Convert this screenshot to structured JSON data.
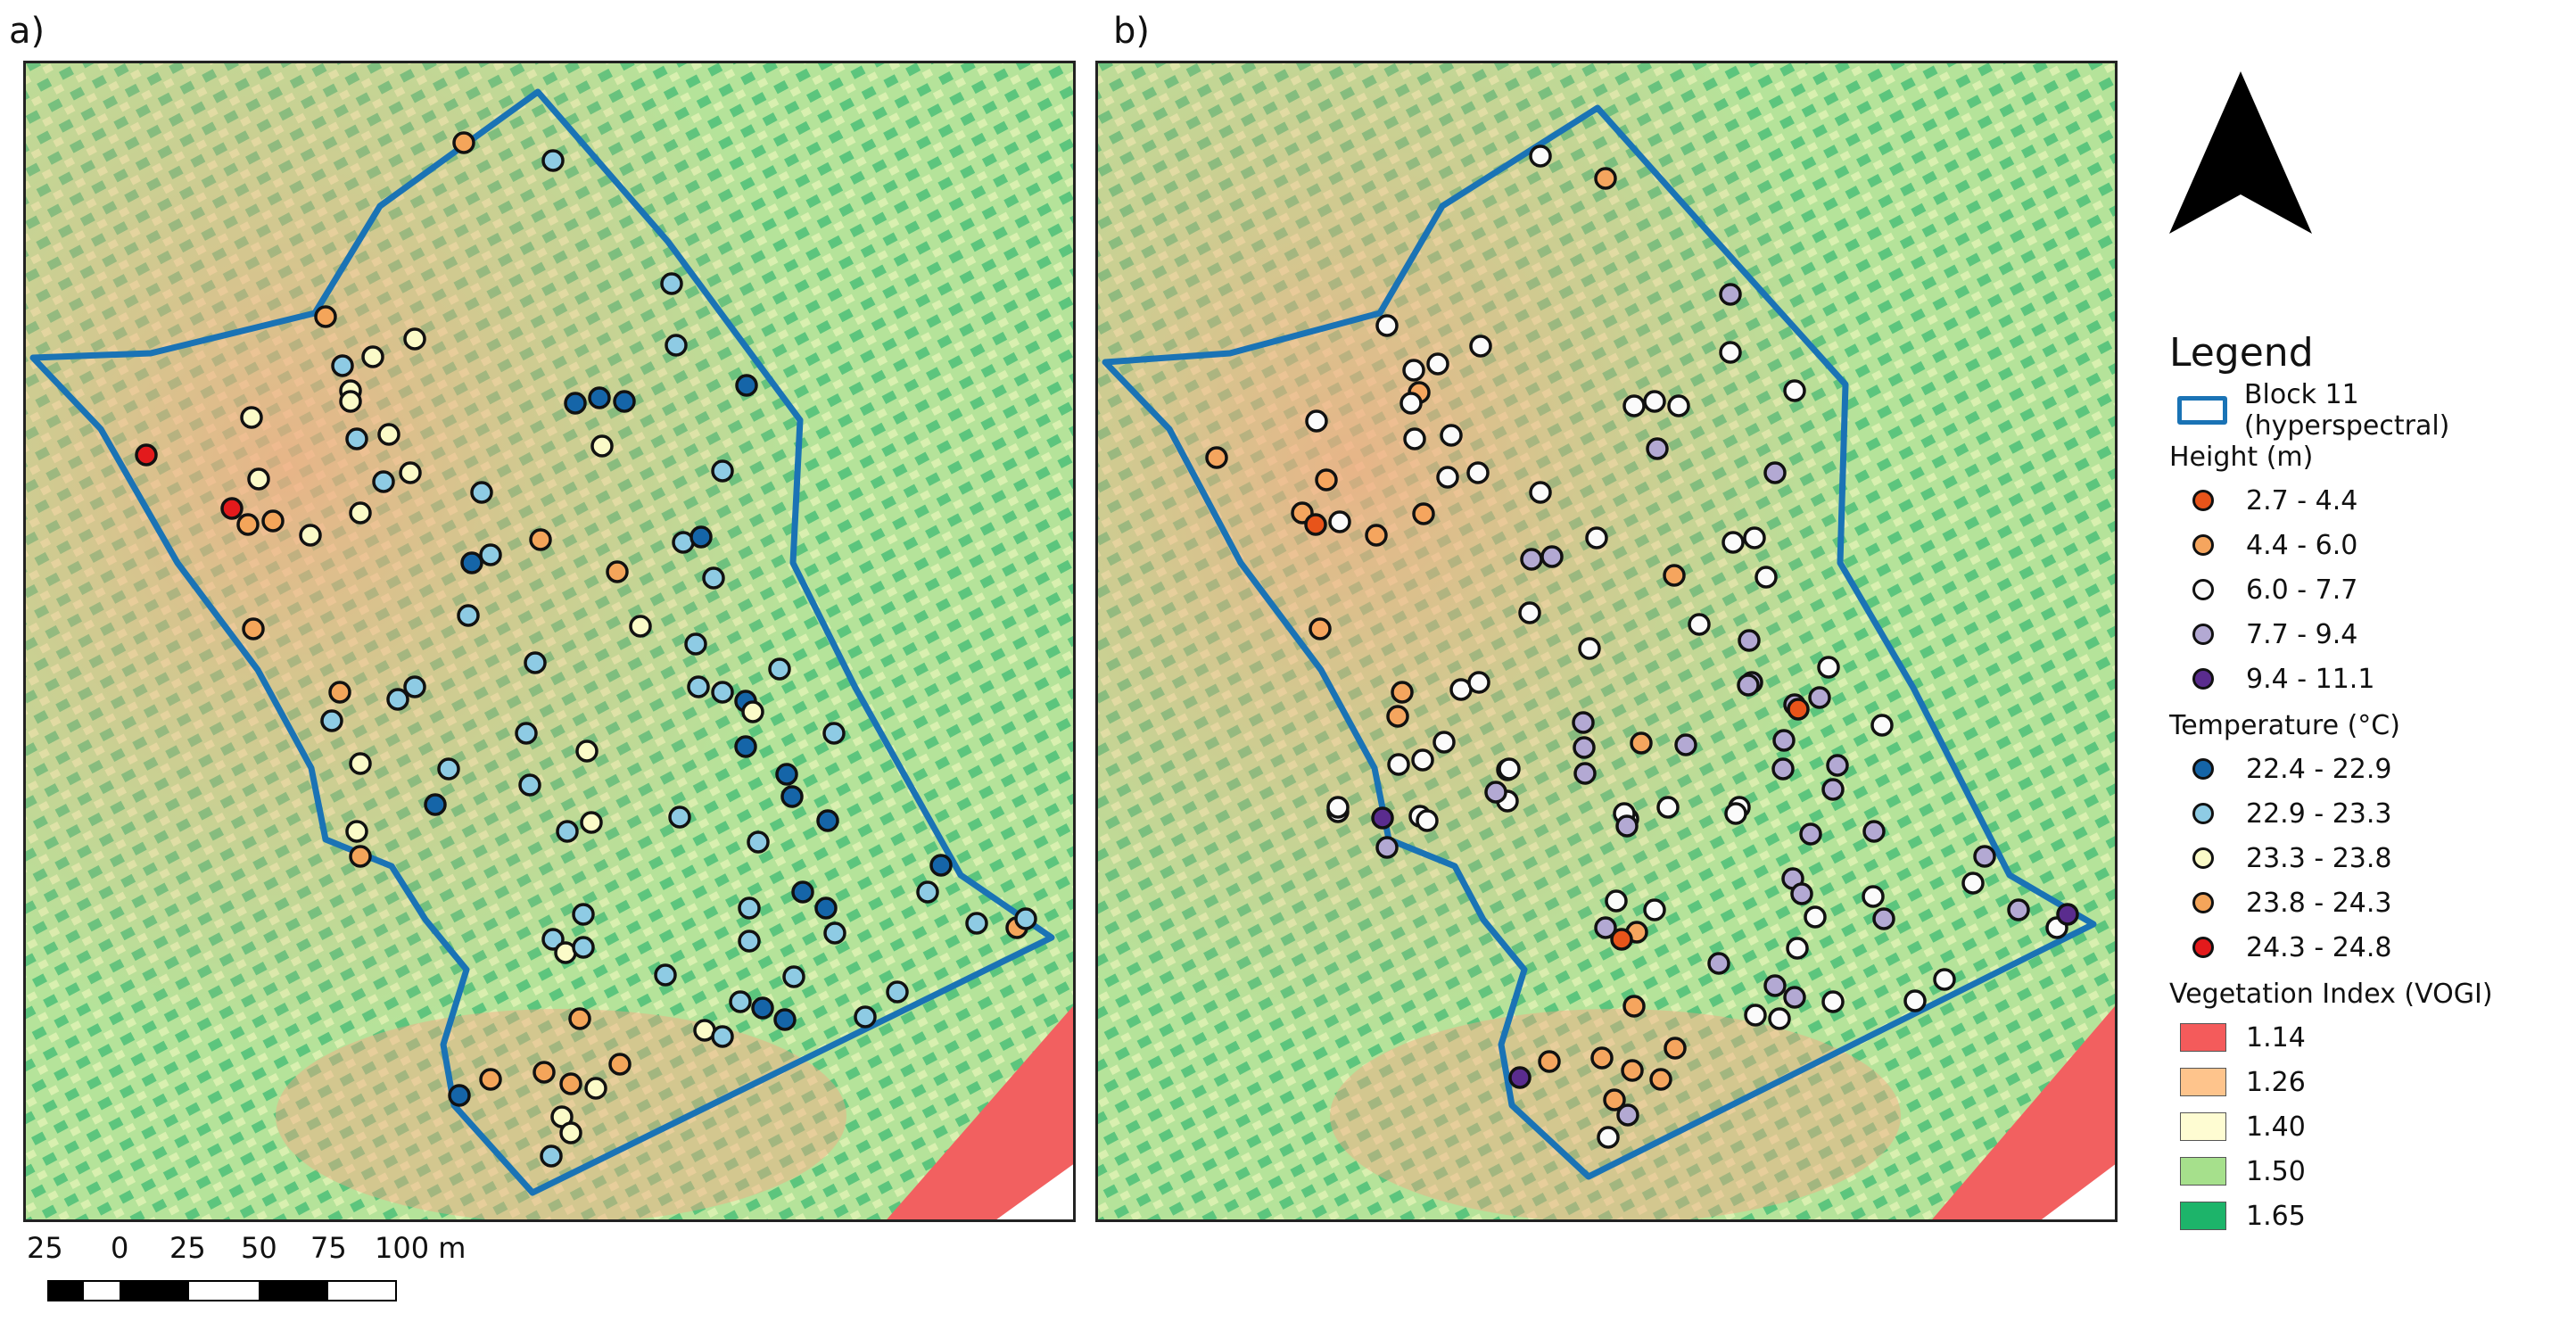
{
  "panels": [
    {
      "id": "a",
      "label": "a)",
      "points": [
        [
          520,
          160,
          "t4"
        ],
        [
          620,
          180,
          "t2"
        ],
        [
          365,
          355,
          "t4"
        ],
        [
          384,
          410,
          "t2"
        ],
        [
          418,
          400,
          "t3"
        ],
        [
          465,
          380,
          "t3"
        ],
        [
          393,
          438,
          "t3"
        ],
        [
          393,
          450,
          "t3"
        ],
        [
          282,
          468,
          "t3"
        ],
        [
          400,
          492,
          "t2"
        ],
        [
          436,
          487,
          "t3"
        ],
        [
          164,
          510,
          "t5"
        ],
        [
          290,
          537,
          "t3"
        ],
        [
          430,
          540,
          "t2"
        ],
        [
          460,
          530,
          "t3"
        ],
        [
          260,
          570,
          "t5"
        ],
        [
          278,
          588,
          "t4"
        ],
        [
          306,
          584,
          "t4"
        ],
        [
          348,
          600,
          "t3"
        ],
        [
          404,
          575,
          "t3"
        ],
        [
          540,
          552,
          "t2"
        ],
        [
          284,
          705,
          "t4"
        ],
        [
          753,
          318,
          "t2"
        ],
        [
          758,
          387,
          "t2"
        ],
        [
          645,
          452,
          "t1"
        ],
        [
          672,
          446,
          "t1"
        ],
        [
          700,
          450,
          "t1"
        ],
        [
          837,
          432,
          "t1"
        ],
        [
          675,
          500,
          "t3"
        ],
        [
          810,
          528,
          "t2"
        ],
        [
          766,
          608,
          "t2"
        ],
        [
          786,
          602,
          "t1"
        ],
        [
          800,
          648,
          "t2"
        ],
        [
          529,
          631,
          "t1"
        ],
        [
          550,
          622,
          "t2"
        ],
        [
          525,
          690,
          "t2"
        ],
        [
          606,
          605,
          "t4"
        ],
        [
          692,
          641,
          "t4"
        ],
        [
          718,
          702,
          "t3"
        ],
        [
          780,
          722,
          "t2"
        ],
        [
          381,
          776,
          "t4"
        ],
        [
          372,
          808,
          "t2"
        ],
        [
          446,
          784,
          "t2"
        ],
        [
          465,
          770,
          "t2"
        ],
        [
          600,
          743,
          "t2"
        ],
        [
          783,
          770,
          "t2"
        ],
        [
          810,
          776,
          "t2"
        ],
        [
          836,
          786,
          "t1"
        ],
        [
          874,
          750,
          "t2"
        ],
        [
          404,
          856,
          "t3"
        ],
        [
          590,
          822,
          "t2"
        ],
        [
          658,
          842,
          "t3"
        ],
        [
          836,
          837,
          "t1"
        ],
        [
          844,
          798,
          "t3"
        ],
        [
          935,
          822,
          "t2"
        ],
        [
          503,
          862,
          "t2"
        ],
        [
          488,
          902,
          "t1"
        ],
        [
          594,
          880,
          "t2"
        ],
        [
          882,
          868,
          "t1"
        ],
        [
          888,
          893,
          "t1"
        ],
        [
          400,
          932,
          "t3"
        ],
        [
          404,
          960,
          "t4"
        ],
        [
          636,
          932,
          "t2"
        ],
        [
          663,
          922,
          "t3"
        ],
        [
          762,
          916,
          "t2"
        ],
        [
          850,
          944,
          "t2"
        ],
        [
          928,
          920,
          "t1"
        ],
        [
          900,
          1000,
          "t1"
        ],
        [
          926,
          1018,
          "t1"
        ],
        [
          936,
          1046,
          "t2"
        ],
        [
          840,
          1018,
          "t2"
        ],
        [
          1055,
          970,
          "t1"
        ],
        [
          1040,
          1000,
          "t2"
        ],
        [
          1095,
          1035,
          "t2"
        ],
        [
          1140,
          1040,
          "t4"
        ],
        [
          1150,
          1030,
          "t2"
        ],
        [
          654,
          1025,
          "t2"
        ],
        [
          840,
          1055,
          "t2"
        ],
        [
          620,
          1053,
          "t2"
        ],
        [
          634,
          1068,
          "t3"
        ],
        [
          654,
          1062,
          "t2"
        ],
        [
          746,
          1093,
          "t2"
        ],
        [
          890,
          1095,
          "t2"
        ],
        [
          830,
          1123,
          "t2"
        ],
        [
          855,
          1130,
          "t1"
        ],
        [
          880,
          1143,
          "t1"
        ],
        [
          970,
          1140,
          "t2"
        ],
        [
          1006,
          1112,
          "t2"
        ],
        [
          790,
          1155,
          "t3"
        ],
        [
          810,
          1162,
          "t2"
        ],
        [
          650,
          1142,
          "t4"
        ],
        [
          610,
          1202,
          "t4"
        ],
        [
          640,
          1215,
          "t4"
        ],
        [
          668,
          1220,
          "t3"
        ],
        [
          695,
          1193,
          "t4"
        ],
        [
          550,
          1210,
          "t4"
        ],
        [
          515,
          1228,
          "t1"
        ],
        [
          630,
          1252,
          "t3"
        ],
        [
          640,
          1270,
          "t3"
        ],
        [
          618,
          1296,
          "t2"
        ]
      ]
    },
    {
      "id": "b",
      "label": "b)",
      "points": [
        [
          1727,
          175,
          "h3"
        ],
        [
          1800,
          200,
          "h2"
        ],
        [
          1940,
          330,
          "h4"
        ],
        [
          1555,
          365,
          "h3"
        ],
        [
          1612,
          408,
          "h3"
        ],
        [
          1660,
          388,
          "h3"
        ],
        [
          1585,
          415,
          "h3"
        ],
        [
          1591,
          440,
          "h2"
        ],
        [
          1582,
          452,
          "h3"
        ],
        [
          1940,
          395,
          "h3"
        ],
        [
          2012,
          438,
          "h3"
        ],
        [
          1832,
          455,
          "h3"
        ],
        [
          1855,
          450,
          "h3"
        ],
        [
          1882,
          455,
          "h3"
        ],
        [
          1476,
          472,
          "h3"
        ],
        [
          1586,
          492,
          "h3"
        ],
        [
          1627,
          488,
          "h3"
        ],
        [
          1858,
          503,
          "h4"
        ],
        [
          1364,
          513,
          "h2"
        ],
        [
          1487,
          538,
          "h2"
        ],
        [
          1990,
          530,
          "h4"
        ],
        [
          1623,
          535,
          "h3"
        ],
        [
          1657,
          530,
          "h3"
        ],
        [
          1727,
          552,
          "h3"
        ],
        [
          1460,
          575,
          "h2"
        ],
        [
          1475,
          588,
          "h1"
        ],
        [
          1502,
          585,
          "h3"
        ],
        [
          1543,
          600,
          "h2"
        ],
        [
          1596,
          576,
          "h2"
        ],
        [
          1790,
          603,
          "h3"
        ],
        [
          1943,
          608,
          "h3"
        ],
        [
          1967,
          603,
          "h3"
        ],
        [
          1717,
          627,
          "h4"
        ],
        [
          1740,
          624,
          "h4"
        ],
        [
          1980,
          647,
          "h3"
        ],
        [
          1877,
          645,
          "h2"
        ],
        [
          1715,
          687,
          "h3"
        ],
        [
          1905,
          700,
          "h3"
        ],
        [
          1480,
          705,
          "h2"
        ],
        [
          1961,
          718,
          "h4"
        ],
        [
          1782,
          727,
          "h3"
        ],
        [
          1964,
          765,
          "h4"
        ],
        [
          2050,
          748,
          "h3"
        ],
        [
          1960,
          768,
          "h4"
        ],
        [
          2012,
          790,
          "h4"
        ],
        [
          1572,
          776,
          "h2"
        ],
        [
          1567,
          803,
          "h2"
        ],
        [
          1638,
          773,
          "h3"
        ],
        [
          1658,
          765,
          "h3"
        ],
        [
          2040,
          782,
          "h4"
        ],
        [
          1619,
          832,
          "h3"
        ],
        [
          1775,
          810,
          "h4"
        ],
        [
          2016,
          795,
          "h1"
        ],
        [
          1568,
          857,
          "h3"
        ],
        [
          2110,
          813,
          "h3"
        ],
        [
          2000,
          830,
          "h4"
        ],
        [
          1690,
          863,
          "h3"
        ],
        [
          1595,
          852,
          "h3"
        ],
        [
          1840,
          833,
          "h2"
        ],
        [
          1999,
          862,
          "h4"
        ],
        [
          1776,
          838,
          "h4"
        ],
        [
          1890,
          835,
          "h4"
        ],
        [
          2060,
          858,
          "h4"
        ],
        [
          2055,
          885,
          "h4"
        ],
        [
          1592,
          915,
          "h3"
        ],
        [
          1777,
          867,
          "h4"
        ],
        [
          1692,
          862,
          "h3"
        ],
        [
          1950,
          905,
          "h3"
        ],
        [
          1870,
          905,
          "h3"
        ],
        [
          1825,
          918,
          "h3"
        ],
        [
          2101,
          932,
          "h4"
        ],
        [
          1690,
          898,
          "h3"
        ],
        [
          1600,
          920,
          "h3"
        ],
        [
          1500,
          910,
          "h3"
        ],
        [
          1500,
          905,
          "h3"
        ],
        [
          1550,
          917,
          "h5"
        ],
        [
          1555,
          950,
          "h4"
        ],
        [
          2030,
          935,
          "h4"
        ],
        [
          1821,
          912,
          "h3"
        ],
        [
          1824,
          926,
          "h4"
        ],
        [
          1946,
          912,
          "h3"
        ],
        [
          1677,
          888,
          "h4"
        ],
        [
          2010,
          985,
          "h4"
        ],
        [
          2020,
          1002,
          "h4"
        ],
        [
          2035,
          1028,
          "h3"
        ],
        [
          2225,
          960,
          "h4"
        ],
        [
          2212,
          990,
          "h3"
        ],
        [
          2100,
          1005,
          "h3"
        ],
        [
          2112,
          1030,
          "h4"
        ],
        [
          1812,
          1010,
          "h3"
        ],
        [
          1800,
          1040,
          "h4"
        ],
        [
          1835,
          1045,
          "h2"
        ],
        [
          1818,
          1053,
          "h1"
        ],
        [
          1855,
          1020,
          "h3"
        ],
        [
          2263,
          1020,
          "h4"
        ],
        [
          2306,
          1040,
          "h3"
        ],
        [
          2318,
          1025,
          "h5"
        ],
        [
          1927,
          1080,
          "h4"
        ],
        [
          2015,
          1063,
          "h3"
        ],
        [
          1990,
          1105,
          "h4"
        ],
        [
          2012,
          1118,
          "h4"
        ],
        [
          2055,
          1123,
          "h3"
        ],
        [
          2180,
          1098,
          "h3"
        ],
        [
          2147,
          1122,
          "h3"
        ],
        [
          1832,
          1128,
          "h2"
        ],
        [
          1995,
          1142,
          "h3"
        ],
        [
          1968,
          1138,
          "h3"
        ],
        [
          1878,
          1175,
          "h2"
        ],
        [
          1796,
          1186,
          "h2"
        ],
        [
          1737,
          1190,
          "h2"
        ],
        [
          1830,
          1200,
          "h2"
        ],
        [
          1862,
          1210,
          "h2"
        ],
        [
          1704,
          1208,
          "h5"
        ],
        [
          1810,
          1233,
          "h2"
        ],
        [
          1825,
          1250,
          "h4"
        ],
        [
          1803,
          1275,
          "h3"
        ]
      ]
    }
  ],
  "colors": {
    "outline": "#1a73b5",
    "h1": "#e8541a",
    "h2": "#f5a55e",
    "h3": "#fbfbfb",
    "h4": "#b3a9d3",
    "h5": "#5a2c8e",
    "t1": "#1565a8",
    "t2": "#8ecbe4",
    "t3": "#fbfbc8",
    "t4": "#f4a55a",
    "t5": "#e31a1c",
    "v1": "#f45b5b",
    "v2": "#fec48c",
    "v3": "#fefcd2",
    "v4": "#a6e08c",
    "v5": "#1db46a"
  },
  "legend": {
    "title": "Legend",
    "block_label": "Block 11 (hyperspectral)",
    "height_title": "Height (m)",
    "height_items": [
      {
        "label": "2.7 - 4.4",
        "color": "#e8541a"
      },
      {
        "label": "4.4 - 6.0",
        "color": "#f5a55e"
      },
      {
        "label": "6.0 - 7.7",
        "color": "#fbfbfb"
      },
      {
        "label": "7.7 - 9.4",
        "color": "#b3a9d3"
      },
      {
        "label": "9.4 - 11.1",
        "color": "#5a2c8e"
      }
    ],
    "temp_title": "Temperature (°C)",
    "temp_items": [
      {
        "label": "22.4 - 22.9",
        "color": "#1565a8"
      },
      {
        "label": "22.9 - 23.3",
        "color": "#8ecbe4"
      },
      {
        "label": "23.3 - 23.8",
        "color": "#fbfbc8"
      },
      {
        "label": "23.8 - 24.3",
        "color": "#f4a55a"
      },
      {
        "label": "24.3 - 24.8",
        "color": "#e31a1c"
      }
    ],
    "veg_title": "Vegetation Index (VOGI)",
    "veg_items": [
      {
        "label": "1.14",
        "color": "#f45b5b"
      },
      {
        "label": "1.26",
        "color": "#fec48c"
      },
      {
        "label": "1.40",
        "color": "#fefcd2"
      },
      {
        "label": "1.50",
        "color": "#a6e08c"
      },
      {
        "label": "1.65",
        "color": "#1db46a"
      }
    ]
  },
  "scale": {
    "labels": [
      "25",
      "0",
      "25",
      "50",
      "75",
      "100 m"
    ]
  },
  "north_icon": "north-arrow-icon"
}
